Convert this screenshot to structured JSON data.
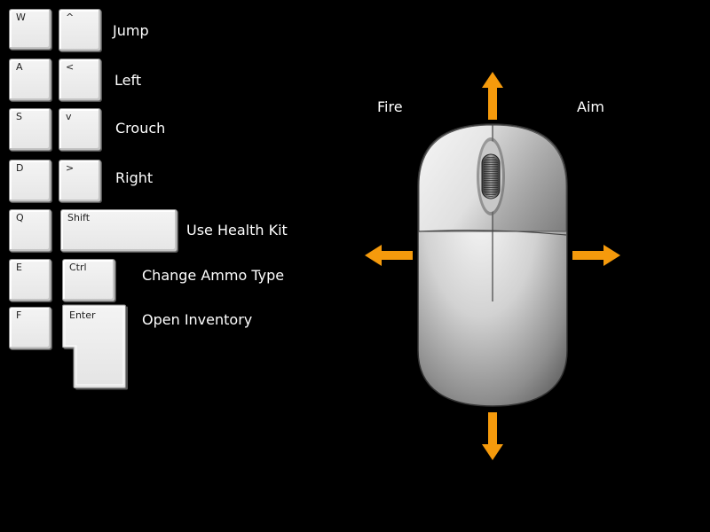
{
  "keyboard": {
    "rows": [
      {
        "key1": "W",
        "key2": "^",
        "action": "Jump"
      },
      {
        "key1": "A",
        "key2": "<",
        "action": "Left"
      },
      {
        "key1": "S",
        "key2": "v",
        "action": "Crouch"
      },
      {
        "key1": "D",
        "key2": ">",
        "action": "Right"
      },
      {
        "key1": "Q",
        "key2": "Shift",
        "action": "Use Health Kit"
      },
      {
        "key1": "E",
        "key2": "Ctrl",
        "action": "Change Ammo Type"
      },
      {
        "key1": "F",
        "key2": "Enter",
        "action": "Open Inventory"
      }
    ]
  },
  "mouse": {
    "left_button": "Fire",
    "right_button": "Aim",
    "arrow_color": "#f59a0c"
  }
}
